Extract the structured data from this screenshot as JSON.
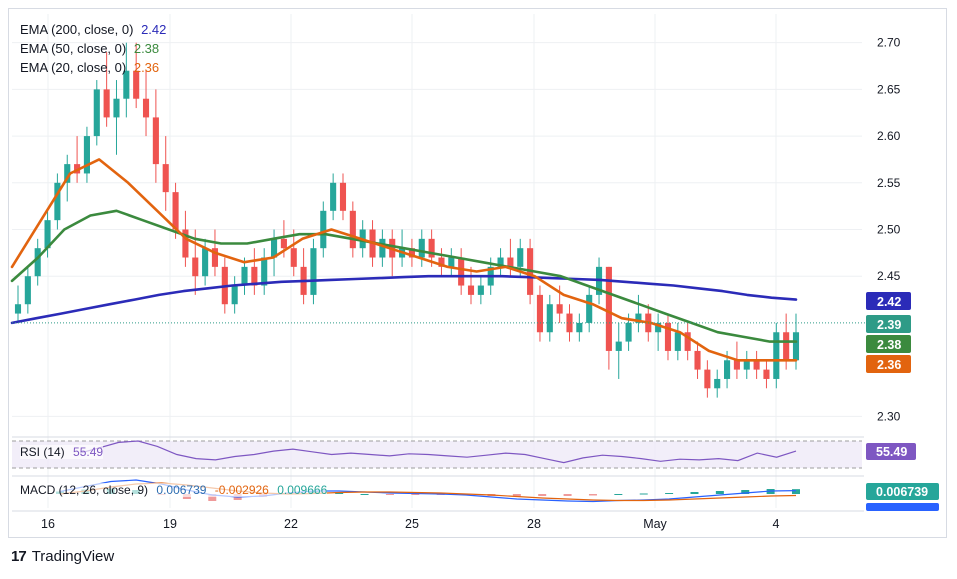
{
  "legend": [
    {
      "label": "EMA (200, close, 0)",
      "value": "2.42",
      "color": "#2b2bb8"
    },
    {
      "label": "EMA (50, close, 0)",
      "value": "2.38",
      "color": "#3b8a3e"
    },
    {
      "label": "EMA (20, close, 0)",
      "value": "2.36",
      "color": "#e2640f"
    }
  ],
  "rsi": {
    "label": "RSI (14)",
    "value": "55.49",
    "badge": "55.49",
    "color": "#7e57c2"
  },
  "macd": {
    "label": "MACD (12, 26, close, 9)",
    "macd_value": "0.006739",
    "signal_value": "-0.002926",
    "hist_value": "0.009666",
    "badge": "0.006739",
    "badge2_partial": "-0.002926"
  },
  "brand": {
    "name": "TradingView"
  },
  "chart_data": {
    "type": "candlestick",
    "ylim": [
      2.28,
      2.72
    ],
    "y_ticks": [
      "2.70",
      "2.65",
      "2.60",
      "2.55",
      "2.50",
      "2.45",
      "2.30"
    ],
    "x_tick_labels": [
      "16",
      "19",
      "22",
      "25",
      "28",
      "May",
      "4"
    ],
    "price_badges": [
      {
        "value": "2.42",
        "y": 2.425,
        "color": "#2b2bb8"
      },
      {
        "value": "2.39",
        "y": 2.396,
        "color": "#2e9b87"
      },
      {
        "value": "2.38",
        "y": 2.378,
        "color": "#3b8a3e"
      },
      {
        "value": "2.36",
        "y": 2.358,
        "color": "#e2640f"
      }
    ],
    "last_price_line": 2.4,
    "candles_ohlc": [
      [
        2.41,
        2.44,
        2.4,
        2.42
      ],
      [
        2.42,
        2.46,
        2.41,
        2.45
      ],
      [
        2.45,
        2.49,
        2.44,
        2.48
      ],
      [
        2.48,
        2.52,
        2.47,
        2.51
      ],
      [
        2.51,
        2.56,
        2.5,
        2.55
      ],
      [
        2.55,
        2.58,
        2.53,
        2.57
      ],
      [
        2.57,
        2.6,
        2.55,
        2.56
      ],
      [
        2.56,
        2.61,
        2.55,
        2.6
      ],
      [
        2.6,
        2.66,
        2.59,
        2.65
      ],
      [
        2.65,
        2.69,
        2.61,
        2.62
      ],
      [
        2.62,
        2.66,
        2.58,
        2.64
      ],
      [
        2.64,
        2.7,
        2.62,
        2.67
      ],
      [
        2.67,
        2.7,
        2.63,
        2.64
      ],
      [
        2.64,
        2.67,
        2.6,
        2.62
      ],
      [
        2.62,
        2.65,
        2.55,
        2.57
      ],
      [
        2.57,
        2.6,
        2.52,
        2.54
      ],
      [
        2.54,
        2.55,
        2.49,
        2.5
      ],
      [
        2.5,
        2.52,
        2.46,
        2.47
      ],
      [
        2.47,
        2.5,
        2.43,
        2.45
      ],
      [
        2.45,
        2.49,
        2.44,
        2.48
      ],
      [
        2.48,
        2.5,
        2.45,
        2.46
      ],
      [
        2.46,
        2.47,
        2.41,
        2.42
      ],
      [
        2.42,
        2.45,
        2.41,
        2.44
      ],
      [
        2.44,
        2.47,
        2.43,
        2.46
      ],
      [
        2.46,
        2.48,
        2.43,
        2.44
      ],
      [
        2.44,
        2.48,
        2.43,
        2.47
      ],
      [
        2.47,
        2.5,
        2.45,
        2.49
      ],
      [
        2.49,
        2.51,
        2.47,
        2.48
      ],
      [
        2.48,
        2.5,
        2.45,
        2.46
      ],
      [
        2.46,
        2.48,
        2.42,
        2.43
      ],
      [
        2.43,
        2.49,
        2.42,
        2.48
      ],
      [
        2.48,
        2.53,
        2.47,
        2.52
      ],
      [
        2.52,
        2.56,
        2.51,
        2.55
      ],
      [
        2.55,
        2.56,
        2.51,
        2.52
      ],
      [
        2.52,
        2.53,
        2.47,
        2.48
      ],
      [
        2.48,
        2.51,
        2.47,
        2.5
      ],
      [
        2.5,
        2.51,
        2.46,
        2.47
      ],
      [
        2.47,
        2.5,
        2.46,
        2.49
      ],
      [
        2.49,
        2.5,
        2.45,
        2.47
      ],
      [
        2.47,
        2.5,
        2.46,
        2.48
      ],
      [
        2.48,
        2.49,
        2.46,
        2.47
      ],
      [
        2.47,
        2.5,
        2.46,
        2.49
      ],
      [
        2.49,
        2.5,
        2.46,
        2.47
      ],
      [
        2.47,
        2.48,
        2.45,
        2.46
      ],
      [
        2.46,
        2.48,
        2.45,
        2.47
      ],
      [
        2.47,
        2.48,
        2.43,
        2.44
      ],
      [
        2.44,
        2.46,
        2.42,
        2.43
      ],
      [
        2.43,
        2.45,
        2.42,
        2.44
      ],
      [
        2.44,
        2.47,
        2.43,
        2.46
      ],
      [
        2.46,
        2.48,
        2.45,
        2.47
      ],
      [
        2.47,
        2.49,
        2.45,
        2.46
      ],
      [
        2.46,
        2.49,
        2.45,
        2.48
      ],
      [
        2.48,
        2.49,
        2.42,
        2.43
      ],
      [
        2.43,
        2.44,
        2.38,
        2.39
      ],
      [
        2.39,
        2.43,
        2.38,
        2.42
      ],
      [
        2.42,
        2.44,
        2.4,
        2.41
      ],
      [
        2.41,
        2.42,
        2.38,
        2.39
      ],
      [
        2.39,
        2.41,
        2.38,
        2.4
      ],
      [
        2.4,
        2.44,
        2.39,
        2.43
      ],
      [
        2.43,
        2.47,
        2.42,
        2.46
      ],
      [
        2.46,
        2.46,
        2.35,
        2.37
      ],
      [
        2.37,
        2.4,
        2.34,
        2.38
      ],
      [
        2.38,
        2.41,
        2.37,
        2.4
      ],
      [
        2.4,
        2.43,
        2.39,
        2.41
      ],
      [
        2.41,
        2.42,
        2.38,
        2.39
      ],
      [
        2.39,
        2.41,
        2.37,
        2.4
      ],
      [
        2.4,
        2.41,
        2.36,
        2.37
      ],
      [
        2.37,
        2.4,
        2.36,
        2.39
      ],
      [
        2.39,
        2.4,
        2.36,
        2.37
      ],
      [
        2.37,
        2.38,
        2.34,
        2.35
      ],
      [
        2.35,
        2.36,
        2.32,
        2.33
      ],
      [
        2.33,
        2.35,
        2.32,
        2.34
      ],
      [
        2.34,
        2.37,
        2.33,
        2.36
      ],
      [
        2.36,
        2.38,
        2.34,
        2.35
      ],
      [
        2.35,
        2.37,
        2.34,
        2.36
      ],
      [
        2.36,
        2.37,
        2.34,
        2.35
      ],
      [
        2.35,
        2.36,
        2.33,
        2.34
      ],
      [
        2.34,
        2.4,
        2.33,
        2.39
      ],
      [
        2.39,
        2.41,
        2.35,
        2.36
      ],
      [
        2.36,
        2.41,
        2.35,
        2.39
      ]
    ],
    "ema200": [
      2.4,
      2.405,
      2.41,
      2.415,
      2.42,
      2.425,
      2.43,
      2.434,
      2.437,
      2.44,
      2.442,
      2.444,
      2.445,
      2.446,
      2.447,
      2.448,
      2.449,
      2.45,
      2.45,
      2.45,
      2.45,
      2.449,
      2.448,
      2.447,
      2.446,
      2.444,
      2.442,
      2.44,
      2.437,
      2.434,
      2.43,
      2.427,
      2.425
    ],
    "ema50": [
      2.445,
      2.47,
      2.5,
      2.515,
      2.52,
      2.51,
      2.5,
      2.49,
      2.485,
      2.485,
      2.49,
      2.495,
      2.495,
      2.49,
      2.485,
      2.48,
      2.475,
      2.47,
      2.465,
      2.46,
      2.455,
      2.45,
      2.44,
      2.43,
      2.42,
      2.41,
      2.4,
      2.39,
      2.385,
      2.38,
      2.38
    ],
    "ema20": [
      2.46,
      2.51,
      2.56,
      2.575,
      2.55,
      2.52,
      2.49,
      2.475,
      2.465,
      2.47,
      2.49,
      2.5,
      2.49,
      2.48,
      2.47,
      2.46,
      2.455,
      2.46,
      2.45,
      2.43,
      2.42,
      2.405,
      2.4,
      2.39,
      2.37,
      2.36,
      2.36,
      2.36
    ],
    "rsi_series": [
      52,
      60,
      68,
      70,
      62,
      50,
      44,
      42,
      47,
      50,
      55,
      58,
      54,
      50,
      52,
      50,
      48,
      51,
      50,
      48,
      46,
      49,
      52,
      50,
      44,
      38,
      45,
      49,
      47,
      44,
      40,
      43,
      42,
      44,
      41,
      52,
      46,
      55
    ],
    "macd_series": [
      0.005,
      0.015,
      0.025,
      0.028,
      0.02,
      0.008,
      -0.002,
      -0.006,
      -0.004,
      0.002,
      0.006,
      0.006,
      0.004,
      0.002,
      0.001,
      0.0,
      -0.002,
      -0.006,
      -0.01,
      -0.012,
      -0.014,
      -0.015,
      -0.013,
      -0.012,
      -0.01,
      -0.006,
      -0.002,
      0.002,
      0.006,
      0.006739
    ],
    "signal_series": [
      0.0,
      0.006,
      0.014,
      0.02,
      0.022,
      0.018,
      0.012,
      0.006,
      0.002,
      0.0,
      0.001,
      0.003,
      0.004,
      0.004,
      0.003,
      0.002,
      0.0,
      -0.002,
      -0.005,
      -0.008,
      -0.01,
      -0.012,
      -0.013,
      -0.013,
      -0.012,
      -0.01,
      -0.008,
      -0.006,
      -0.004,
      -0.002926
    ]
  }
}
